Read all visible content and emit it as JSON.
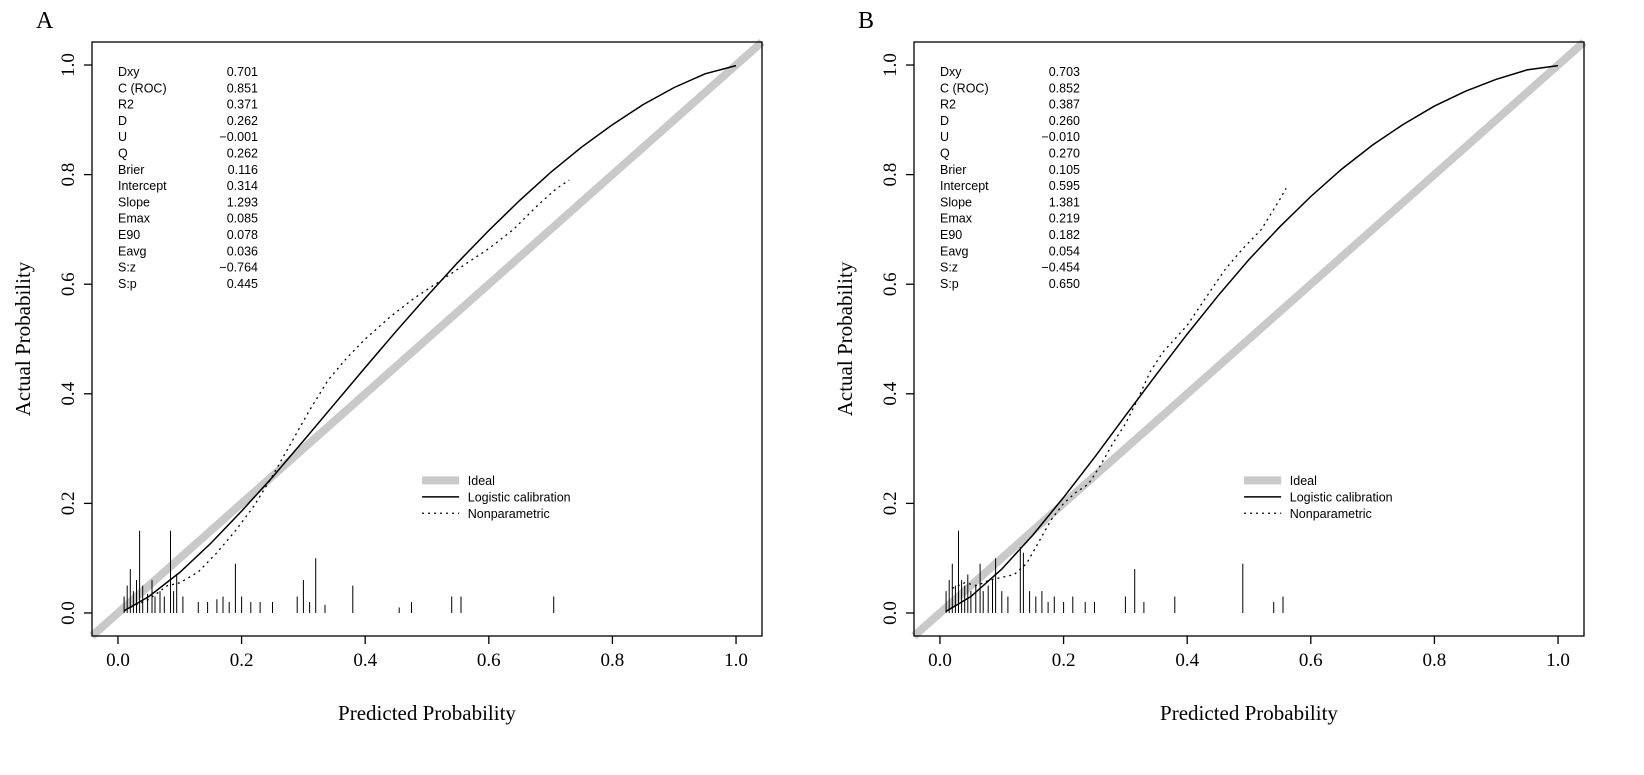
{
  "colors": {
    "background": "#ffffff",
    "ideal_line": "#c9c9c9",
    "curve_line": "#000000",
    "text": "#000000"
  },
  "chart_data": [
    {
      "type": "line",
      "panel_label": "A",
      "xlabel": "Predicted Probability",
      "ylabel": "Actual Probability",
      "xlim": [
        -0.04,
        1.04
      ],
      "ylim": [
        -0.04,
        1.04
      ],
      "grid": false,
      "legend_position": "lower-right-inside",
      "x_tick_values": [
        0,
        0.2,
        0.4,
        0.6,
        0.8,
        1.0
      ],
      "x_tick_labels": [
        "0.0",
        "0.2",
        "0.4",
        "0.6",
        "0.8",
        "1.0"
      ],
      "y_tick_values": [
        0,
        0.2,
        0.4,
        0.6,
        0.8,
        1.0
      ],
      "y_tick_labels": [
        "0.0",
        "0.2",
        "0.4",
        "0.6",
        "0.8",
        "1.0"
      ],
      "stats": [
        {
          "name": "Dxy",
          "value": "0.701"
        },
        {
          "name": "C (ROC)",
          "value": "0.851"
        },
        {
          "name": "R2",
          "value": "0.371"
        },
        {
          "name": "D",
          "value": "0.262"
        },
        {
          "name": "U",
          "value": "−0.001"
        },
        {
          "name": "Q",
          "value": "0.262"
        },
        {
          "name": "Brier",
          "value": "0.116"
        },
        {
          "name": "Intercept",
          "value": "0.314"
        },
        {
          "name": "Slope",
          "value": "1.293"
        },
        {
          "name": "Emax",
          "value": "0.085"
        },
        {
          "name": "E90",
          "value": "0.078"
        },
        {
          "name": "Eavg",
          "value": "0.036"
        },
        {
          "name": "S:z",
          "value": "−0.764"
        },
        {
          "name": "S:p",
          "value": "0.445"
        }
      ],
      "legend": [
        {
          "label": "Ideal",
          "style": "ideal"
        },
        {
          "label": "Logistic calibration",
          "style": "solid"
        },
        {
          "label": "Nonparametric",
          "style": "dotted"
        }
      ],
      "series": [
        {
          "name": "Ideal",
          "style": "ideal",
          "x": [
            -0.042,
            1.042
          ],
          "y": [
            -0.042,
            1.042
          ]
        },
        {
          "name": "Logistic calibration",
          "style": "solid",
          "x": [
            0.01,
            0.05,
            0.1,
            0.15,
            0.2,
            0.25,
            0.3,
            0.35,
            0.4,
            0.45,
            0.5,
            0.55,
            0.6,
            0.65,
            0.7,
            0.75,
            0.8,
            0.85,
            0.9,
            0.95,
            1.0
          ],
          "y": [
            0.004,
            0.03,
            0.074,
            0.127,
            0.186,
            0.248,
            0.314,
            0.381,
            0.448,
            0.514,
            0.578,
            0.64,
            0.698,
            0.753,
            0.804,
            0.85,
            0.891,
            0.928,
            0.959,
            0.984,
            0.999
          ]
        },
        {
          "name": "Nonparametric",
          "style": "dotted",
          "x": [
            0.02,
            0.05,
            0.08,
            0.1,
            0.13,
            0.16,
            0.19,
            0.22,
            0.25,
            0.28,
            0.31,
            0.34,
            0.37,
            0.4,
            0.44,
            0.48,
            0.52,
            0.56,
            0.6,
            0.64,
            0.68,
            0.71,
            0.73
          ],
          "y": [
            0.01,
            0.025,
            0.05,
            0.055,
            0.075,
            0.11,
            0.15,
            0.195,
            0.25,
            0.31,
            0.37,
            0.425,
            0.465,
            0.5,
            0.54,
            0.575,
            0.605,
            0.635,
            0.665,
            0.7,
            0.745,
            0.775,
            0.79
          ]
        }
      ],
      "rug": {
        "x": [
          0.01,
          0.015,
          0.02,
          0.025,
          0.03,
          0.035,
          0.04,
          0.048,
          0.055,
          0.06,
          0.068,
          0.075,
          0.085,
          0.09,
          0.095,
          0.105,
          0.13,
          0.145,
          0.16,
          0.17,
          0.18,
          0.19,
          0.2,
          0.215,
          0.23,
          0.25,
          0.29,
          0.3,
          0.31,
          0.32,
          0.335,
          0.38,
          0.455,
          0.475,
          0.54,
          0.555,
          0.705
        ],
        "h": [
          0.03,
          0.05,
          0.08,
          0.04,
          0.06,
          0.15,
          0.05,
          0.035,
          0.06,
          0.03,
          0.04,
          0.03,
          0.15,
          0.04,
          0.07,
          0.03,
          0.02,
          0.02,
          0.025,
          0.03,
          0.02,
          0.09,
          0.03,
          0.02,
          0.02,
          0.02,
          0.03,
          0.06,
          0.02,
          0.1,
          0.015,
          0.05,
          0.01,
          0.02,
          0.03,
          0.03,
          0.03
        ]
      }
    },
    {
      "type": "line",
      "panel_label": "B",
      "xlabel": "Predicted Probability",
      "ylabel": "Actual Probability",
      "xlim": [
        -0.04,
        1.04
      ],
      "ylim": [
        -0.04,
        1.04
      ],
      "grid": false,
      "legend_position": "lower-right-inside",
      "x_tick_values": [
        0,
        0.2,
        0.4,
        0.6,
        0.8,
        1.0
      ],
      "x_tick_labels": [
        "0.0",
        "0.2",
        "0.4",
        "0.6",
        "0.8",
        "1.0"
      ],
      "y_tick_values": [
        0,
        0.2,
        0.4,
        0.6,
        0.8,
        1.0
      ],
      "y_tick_labels": [
        "0.0",
        "0.2",
        "0.4",
        "0.6",
        "0.8",
        "1.0"
      ],
      "stats": [
        {
          "name": "Dxy",
          "value": "0.703"
        },
        {
          "name": "C (ROC)",
          "value": "0.852"
        },
        {
          "name": "R2",
          "value": "0.387"
        },
        {
          "name": "D",
          "value": "0.260"
        },
        {
          "name": "U",
          "value": "−0.010"
        },
        {
          "name": "Q",
          "value": "0.270"
        },
        {
          "name": "Brier",
          "value": "0.105"
        },
        {
          "name": "Intercept",
          "value": "0.595"
        },
        {
          "name": "Slope",
          "value": "1.381"
        },
        {
          "name": "Emax",
          "value": "0.219"
        },
        {
          "name": "E90",
          "value": "0.182"
        },
        {
          "name": "Eavg",
          "value": "0.054"
        },
        {
          "name": "S:z",
          "value": "−0.454"
        },
        {
          "name": "S:p",
          "value": "0.650"
        }
      ],
      "legend": [
        {
          "label": "Ideal",
          "style": "ideal"
        },
        {
          "label": "Logistic calibration",
          "style": "solid"
        },
        {
          "label": "Nonparametric",
          "style": "dotted"
        }
      ],
      "series": [
        {
          "name": "Ideal",
          "style": "ideal",
          "x": [
            -0.042,
            1.042
          ],
          "y": [
            -0.042,
            1.042
          ]
        },
        {
          "name": "Logistic calibration",
          "style": "solid",
          "x": [
            0.01,
            0.05,
            0.1,
            0.15,
            0.2,
            0.25,
            0.3,
            0.35,
            0.4,
            0.45,
            0.5,
            0.55,
            0.6,
            0.65,
            0.7,
            0.75,
            0.8,
            0.85,
            0.9,
            0.95,
            1.0
          ],
          "y": [
            0.003,
            0.03,
            0.08,
            0.142,
            0.211,
            0.284,
            0.36,
            0.435,
            0.509,
            0.579,
            0.645,
            0.705,
            0.76,
            0.81,
            0.854,
            0.892,
            0.925,
            0.952,
            0.974,
            0.991,
            0.999
          ]
        },
        {
          "name": "Nonparametric",
          "style": "dotted",
          "x": [
            0.02,
            0.04,
            0.06,
            0.08,
            0.1,
            0.12,
            0.14,
            0.16,
            0.18,
            0.2,
            0.22,
            0.24,
            0.26,
            0.28,
            0.3,
            0.32,
            0.34,
            0.36,
            0.38,
            0.4,
            0.43,
            0.46,
            0.49,
            0.52,
            0.55,
            0.56
          ],
          "y": [
            0.045,
            0.055,
            0.05,
            0.06,
            0.065,
            0.07,
            0.09,
            0.13,
            0.17,
            0.2,
            0.22,
            0.235,
            0.27,
            0.31,
            0.345,
            0.39,
            0.44,
            0.475,
            0.5,
            0.525,
            0.575,
            0.625,
            0.665,
            0.7,
            0.755,
            0.775
          ]
        }
      ],
      "rug": {
        "x": [
          0.01,
          0.015,
          0.02,
          0.025,
          0.03,
          0.035,
          0.04,
          0.045,
          0.05,
          0.058,
          0.065,
          0.07,
          0.078,
          0.085,
          0.09,
          0.1,
          0.11,
          0.13,
          0.135,
          0.145,
          0.155,
          0.165,
          0.175,
          0.185,
          0.2,
          0.215,
          0.235,
          0.25,
          0.3,
          0.315,
          0.33,
          0.38,
          0.49,
          0.54,
          0.555
        ],
        "h": [
          0.04,
          0.06,
          0.09,
          0.05,
          0.15,
          0.06,
          0.05,
          0.07,
          0.04,
          0.05,
          0.09,
          0.04,
          0.05,
          0.06,
          0.1,
          0.04,
          0.03,
          0.12,
          0.11,
          0.04,
          0.03,
          0.04,
          0.02,
          0.03,
          0.02,
          0.03,
          0.02,
          0.02,
          0.03,
          0.08,
          0.02,
          0.03,
          0.09,
          0.02,
          0.03
        ]
      }
    }
  ]
}
